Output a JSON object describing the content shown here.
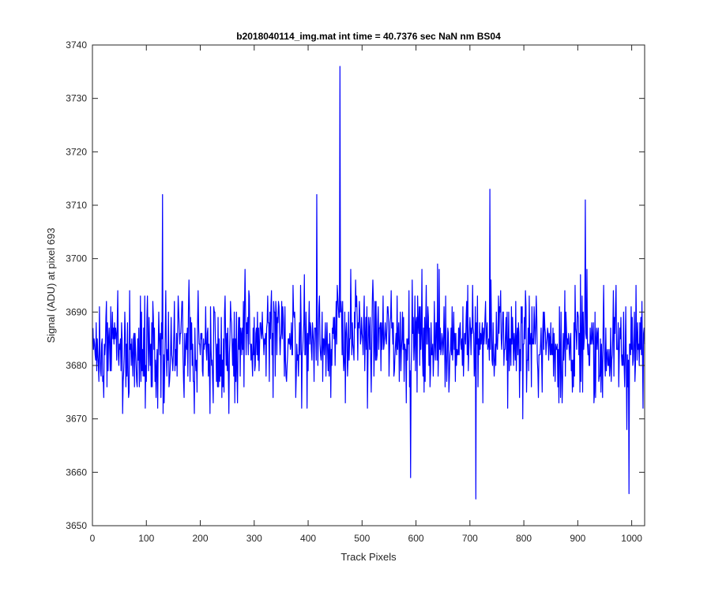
{
  "chart_data": {
    "type": "line",
    "title": "b2018040114_img.mat int time = 40.7376 sec  NaN nm BS04",
    "xlabel": "Track Pixels",
    "ylabel": "Signal (ADU) at pixel 693",
    "xlim": [
      0,
      1024
    ],
    "ylim": [
      3650,
      3740
    ],
    "xticks": [
      0,
      100,
      200,
      300,
      400,
      500,
      600,
      700,
      800,
      900,
      1000
    ],
    "yticks": [
      3650,
      3660,
      3670,
      3680,
      3690,
      3700,
      3710,
      3720,
      3730,
      3740
    ],
    "grid": false,
    "line_color": "#0000ff",
    "series": [
      {
        "x_start": 1,
        "x_step": 1,
        "point_count": 1024,
        "baseline": 3683,
        "peaks": [
          [
            130,
            3712
          ],
          [
            416,
            3712
          ],
          [
            459,
            3736
          ],
          [
            590,
            3659
          ],
          [
            711,
            3655
          ],
          [
            737,
            3713
          ],
          [
            914,
            3711
          ],
          [
            995,
            3656
          ]
        ],
        "description_values_sample": [
          3681,
          3662,
          3701,
          3670,
          3688,
          3676,
          3684,
          3690,
          3672,
          3686,
          3679,
          3694,
          3673,
          3685,
          3681,
          3677,
          3692,
          3668,
          3683,
          3687
        ]
      }
    ]
  }
}
